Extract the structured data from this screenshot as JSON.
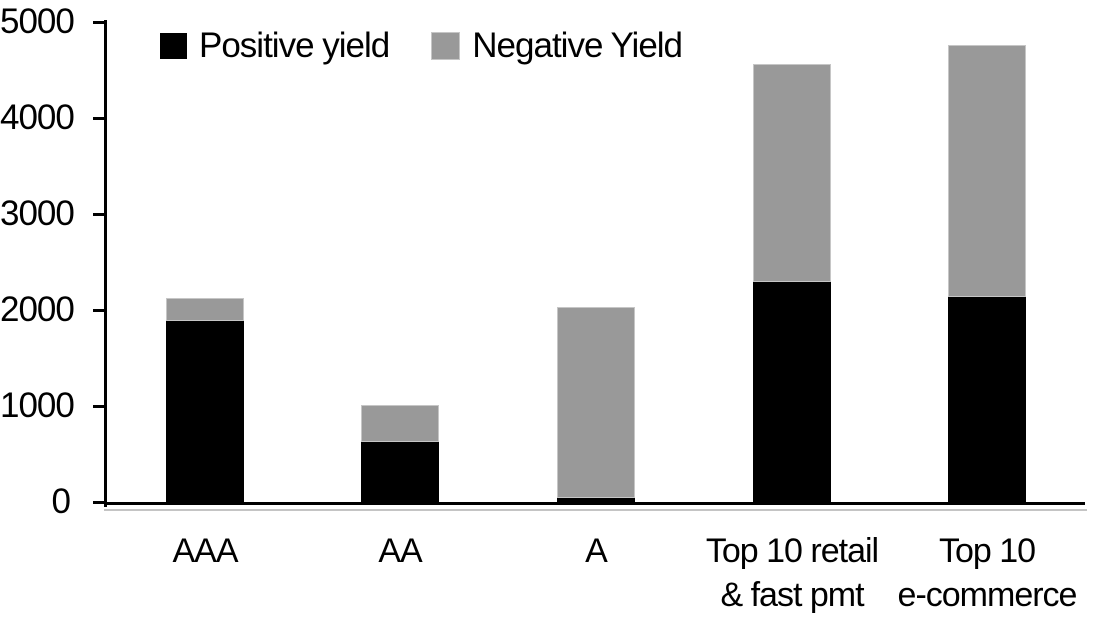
{
  "chart_data": {
    "type": "bar",
    "stacked": true,
    "title": "",
    "categories": [
      "AAA",
      "AA",
      "A",
      "Top 10 retail\n& fast pmt",
      "Top 10\ne-commerce"
    ],
    "series": [
      {
        "name": "Positive yield",
        "color": "#000000",
        "values": [
          1890,
          620,
          40,
          2290,
          2140
        ]
      },
      {
        "name": "Negative Yield",
        "color": "#999999",
        "values": [
          240,
          385,
          1990,
          2270,
          2620
        ]
      }
    ],
    "totals": [
      2130,
      1005,
      2030,
      4560,
      4760
    ],
    "xlabel": "",
    "ylabel": "",
    "ylim": [
      0,
      5000
    ],
    "ytick_interval": 1000,
    "ytick_labels": [
      "0",
      "1000",
      "2000",
      "3000",
      "4000",
      "5000"
    ],
    "grid": false,
    "legend_position": "top-left"
  },
  "colors": {
    "positive": "#000000",
    "negative": "#999999",
    "bar_outline": "#c6c6c6",
    "axis": "#000000",
    "axis_shadow": "#c4c4c4",
    "background": "#ffffff"
  }
}
